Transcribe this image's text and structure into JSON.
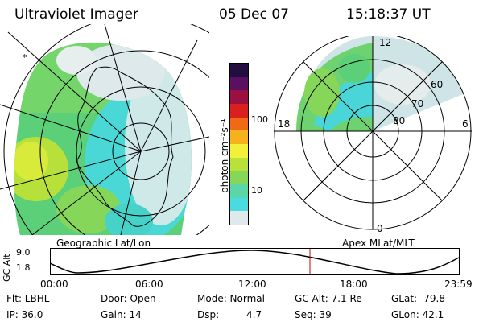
{
  "header": {
    "instrument": "Ultraviolet Imager",
    "date": "05 Dec 07",
    "time": "15:18:37 UT"
  },
  "colorbar": {
    "unit_label": "photon cm⁻²s⁻¹",
    "ticks": [
      "100",
      "10"
    ],
    "scale": "log",
    "colors": [
      "#dfe8ea",
      "#49dbe0",
      "#5bd6a8",
      "#86d65a",
      "#b8e23a",
      "#f2f03a",
      "#f5b21c",
      "#ef6a16",
      "#d9201e",
      "#9a1040",
      "#5a1060",
      "#220f40"
    ]
  },
  "left_panel": {
    "projection_label": "Geographic Lat/Lon",
    "corner_mark": "*"
  },
  "right_panel": {
    "projection_label": "Apex MLat/MLT",
    "mlt_labels": {
      "top": "12",
      "left": "18",
      "right": "6",
      "bottom": "0"
    },
    "mlat_labels": [
      "60",
      "70",
      "80"
    ]
  },
  "altitude_plot": {
    "axis_label": "GC Alt",
    "y_ticks": [
      "9.0",
      "1.8"
    ],
    "x_ticks": [
      "00:00",
      "06:00",
      "12:00",
      "18:00",
      "23:59"
    ],
    "current_time_marker": "15:18:37",
    "marker_color": "#cc0000"
  },
  "status": {
    "flt": "Flt: LBHL",
    "door": "Door: Open",
    "mode": "Mode: Normal",
    "gc_alt": "GC Alt: 7.1 Re",
    "glat": "GLat: -79.8",
    "ip": "IP: 36.0",
    "gain": "Gain: 14",
    "dsp": "Dsp:",
    "dsp_val": "4.7",
    "seq": "Seq: 39",
    "glon": "GLon:  42.1"
  }
}
